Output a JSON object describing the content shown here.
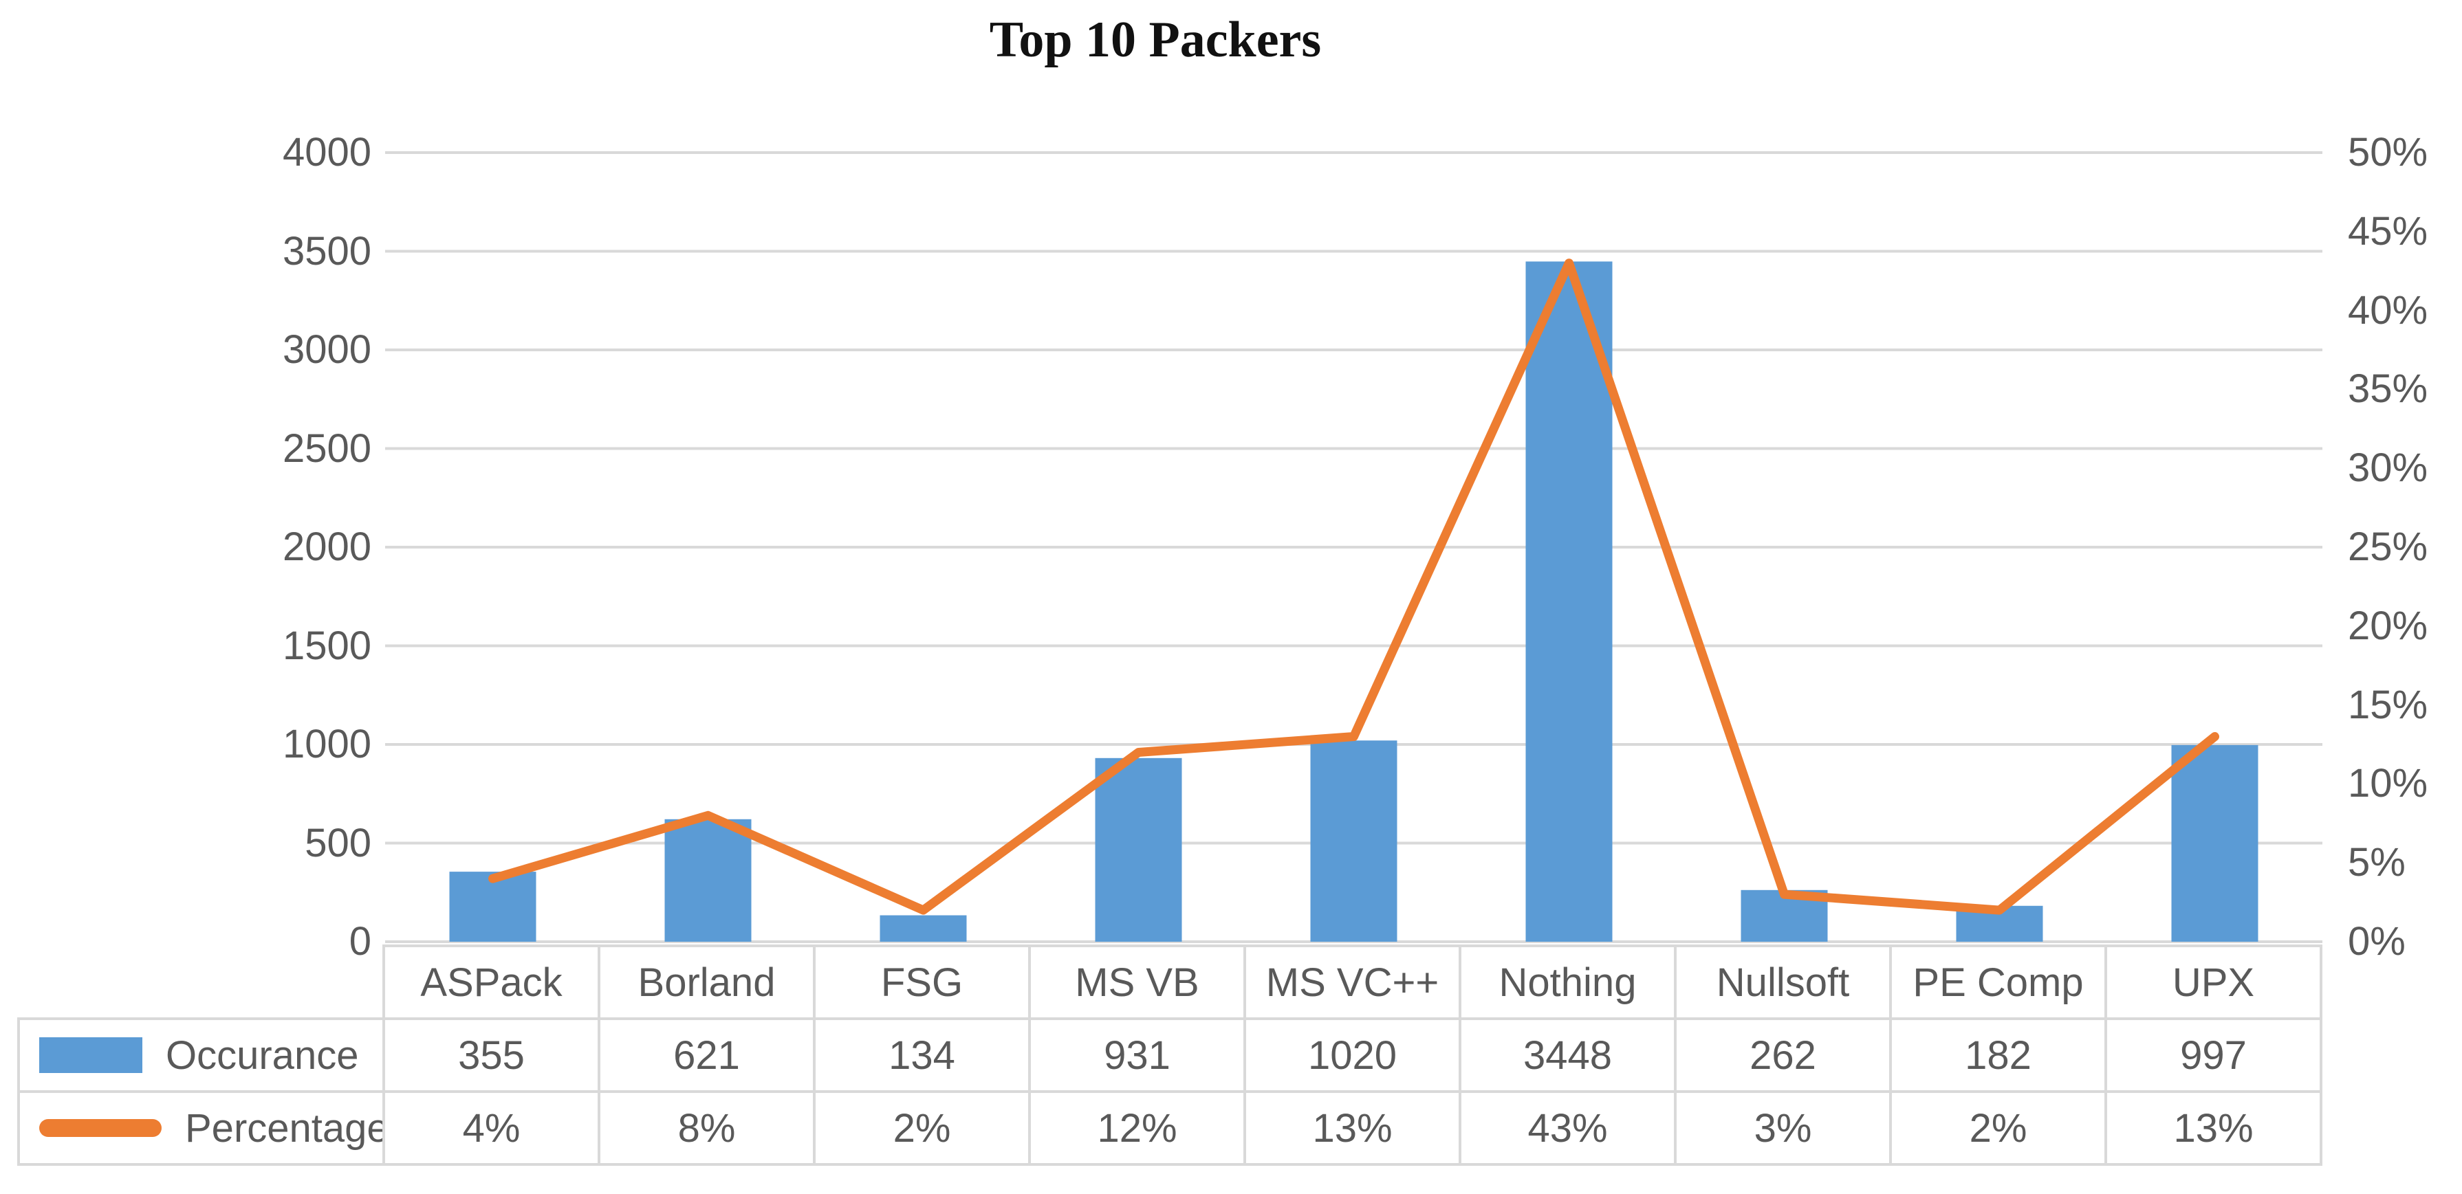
{
  "chart_data": {
    "type": "bar+line",
    "title": "Top 10 Packers",
    "categories": [
      "ASPack",
      "Borland",
      "FSG",
      "MS VB",
      "MS VC++",
      "Nothing",
      "Nullsoft",
      "PE Comp",
      "UPX"
    ],
    "series": [
      {
        "name": "Occurance",
        "type": "bar",
        "axis": "left",
        "color": "#5b9bd5",
        "values": [
          355,
          621,
          134,
          931,
          1020,
          3448,
          262,
          182,
          997
        ]
      },
      {
        "name": "Percentage",
        "type": "line",
        "axis": "right",
        "color": "#ed7d31",
        "values": [
          4,
          8,
          2,
          12,
          13,
          43,
          3,
          2,
          13
        ],
        "labels": [
          "4%",
          "8%",
          "2%",
          "12%",
          "13%",
          "43%",
          "3%",
          "2%",
          "13%"
        ]
      }
    ],
    "left_axis": {
      "min": 0,
      "max": 4000,
      "step": 500,
      "ticks": [
        "0",
        "500",
        "1000",
        "1500",
        "2000",
        "2500",
        "3000",
        "3500",
        "4000"
      ]
    },
    "right_axis": {
      "min": 0,
      "max": 50,
      "step": 5,
      "ticks": [
        "0%",
        "5%",
        "10%",
        "15%",
        "20%",
        "25%",
        "30%",
        "35%",
        "40%",
        "45%",
        "50%"
      ]
    },
    "gridlines": true,
    "legend_position": "data-table-left",
    "colors": {
      "grid": "#d9d9d9",
      "text": "#595959",
      "bar": "#5b9bd5",
      "line": "#ed7d31",
      "title": "#111111"
    }
  }
}
